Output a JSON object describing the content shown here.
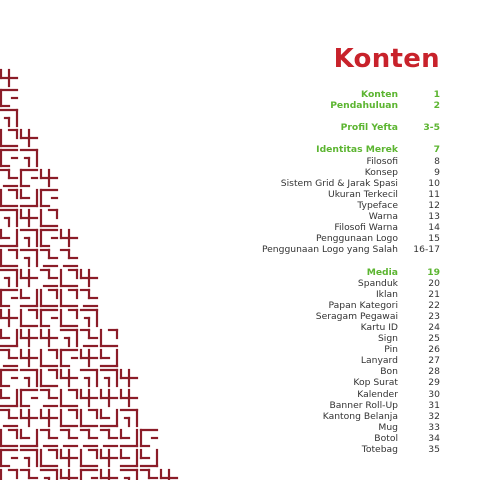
{
  "title": "Konten",
  "colors": {
    "title": "#c8222b",
    "section": "#5cb531",
    "pattern": "#8b1c28",
    "item": "#333333"
  },
  "toc": [
    {
      "label": "Konten",
      "page": "1",
      "section": true
    },
    {
      "label": "Pendahuluan",
      "page": "2",
      "section": true
    },
    {
      "gap": true
    },
    {
      "label": "Profil Yefta",
      "page": "3-5",
      "section": true
    },
    {
      "gap": true
    },
    {
      "label": "Identitas Merek",
      "page": "7",
      "section": true
    },
    {
      "label": "Filosofi",
      "page": "8"
    },
    {
      "label": "Konsep",
      "page": "9"
    },
    {
      "label": "Sistem Grid & Jarak Spasi",
      "page": "10"
    },
    {
      "label": "Ukuran Terkecil",
      "page": "11"
    },
    {
      "label": "Typeface",
      "page": "12"
    },
    {
      "label": "Warna",
      "page": "13"
    },
    {
      "label": "Filosofi Warna",
      "page": "14"
    },
    {
      "label": "Penggunaan Logo",
      "page": "15"
    },
    {
      "label": "Penggunaan Logo yang Salah",
      "page": "16-17"
    },
    {
      "gap": true
    },
    {
      "label": "Media",
      "page": "19",
      "section": true
    },
    {
      "label": "Spanduk",
      "page": "20"
    },
    {
      "label": "Iklan",
      "page": "21"
    },
    {
      "label": "Papan Kategori",
      "page": "22"
    },
    {
      "label": "Seragam Pegawai",
      "page": "23"
    },
    {
      "label": "Kartu ID",
      "page": "24"
    },
    {
      "label": "Sign",
      "page": "25"
    },
    {
      "label": "Pin",
      "page": "26"
    },
    {
      "label": "Lanyard",
      "page": "27"
    },
    {
      "label": "Bon",
      "page": "28"
    },
    {
      "label": "Kop Surat",
      "page": "29"
    },
    {
      "label": "Kalender",
      "page": "30"
    },
    {
      "label": "Banner Roll-Up",
      "page": "31"
    },
    {
      "label": "Kantong Belanja",
      "page": "32"
    },
    {
      "label": "Mug",
      "page": "33"
    },
    {
      "label": "Botol",
      "page": "34"
    },
    {
      "label": "Totebag",
      "page": "35"
    }
  ]
}
